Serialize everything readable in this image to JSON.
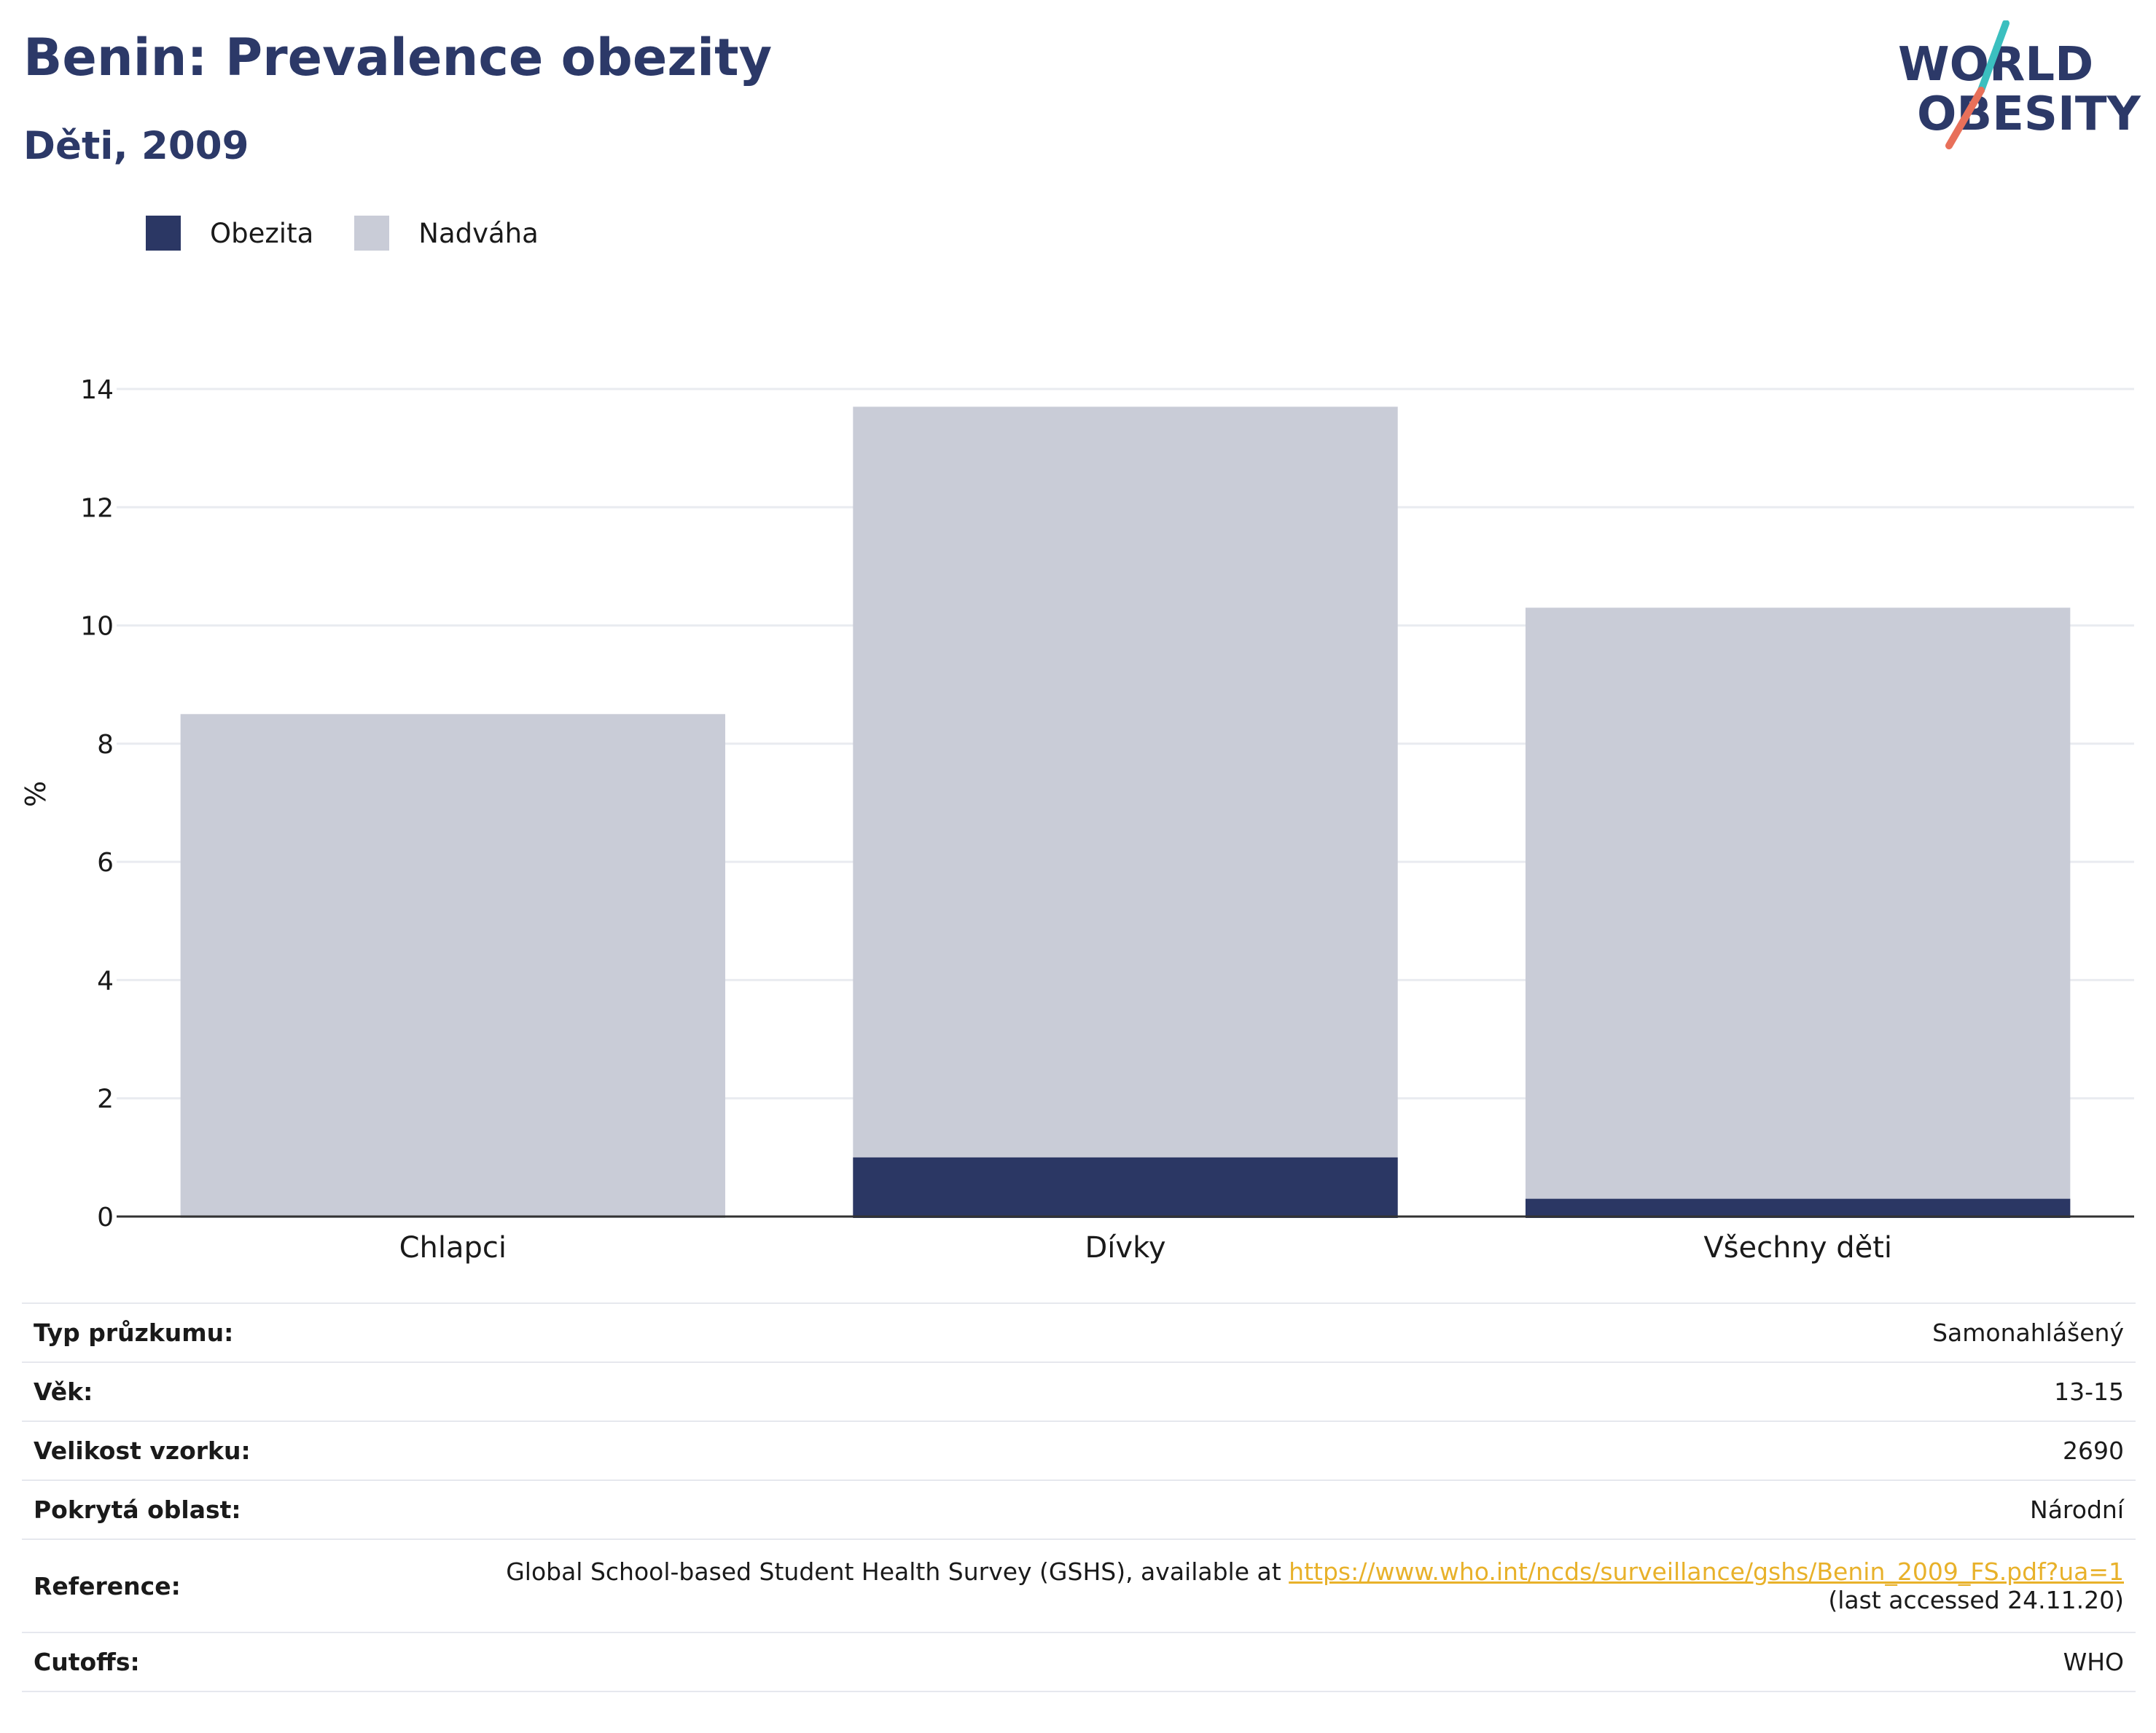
{
  "header": {
    "title": "Benin: Prevalence obezity",
    "subtitle": "Děti, 2009"
  },
  "logo": {
    "line1": "WORLD",
    "line2": "OBESITY",
    "colors": {
      "text": "#2c3968",
      "slash_top": "#3bbfbf",
      "slash_bottom": "#e8705a"
    }
  },
  "legend": {
    "items": [
      {
        "label": "Obezita",
        "color": "#2b3764"
      },
      {
        "label": "Nadváha",
        "color": "#c9ccd7"
      }
    ]
  },
  "chart_data": {
    "type": "bar",
    "stacked": false,
    "overlay": true,
    "categories": [
      "Chlapci",
      "Dívky",
      "Všechny děti"
    ],
    "series": [
      {
        "name": "Nadváha",
        "color": "#c9ccd7",
        "values": [
          8.5,
          13.7,
          10.3
        ]
      },
      {
        "name": "Obezita",
        "color": "#2b3764",
        "values": [
          0,
          1.0,
          0.3
        ]
      }
    ],
    "ylabel": "%",
    "ylim": [
      0,
      14
    ],
    "yticks": [
      0,
      2,
      4,
      6,
      8,
      10,
      12,
      14
    ],
    "grid": true,
    "legend_position": "top-left"
  },
  "info": {
    "rows": [
      {
        "key": "Typ průzkumu:",
        "value": "Samonahlášený"
      },
      {
        "key": "Věk:",
        "value": "13-15"
      },
      {
        "key": "Velikost vzorku:",
        "value": "2690"
      },
      {
        "key": "Pokrytá oblast:",
        "value": "Národní"
      }
    ],
    "reference": {
      "key": "Reference:",
      "text_before": "Global School-based Student Health Survey (GSHS), available at ",
      "link": "https://www.who.int/ncds/surveillance/gshs/Benin_2009_FS.pdf?ua=1",
      "text_after": "(last accessed 24.11.20)"
    },
    "cutoffs": {
      "key": "Cutoffs:",
      "value": "WHO"
    }
  }
}
